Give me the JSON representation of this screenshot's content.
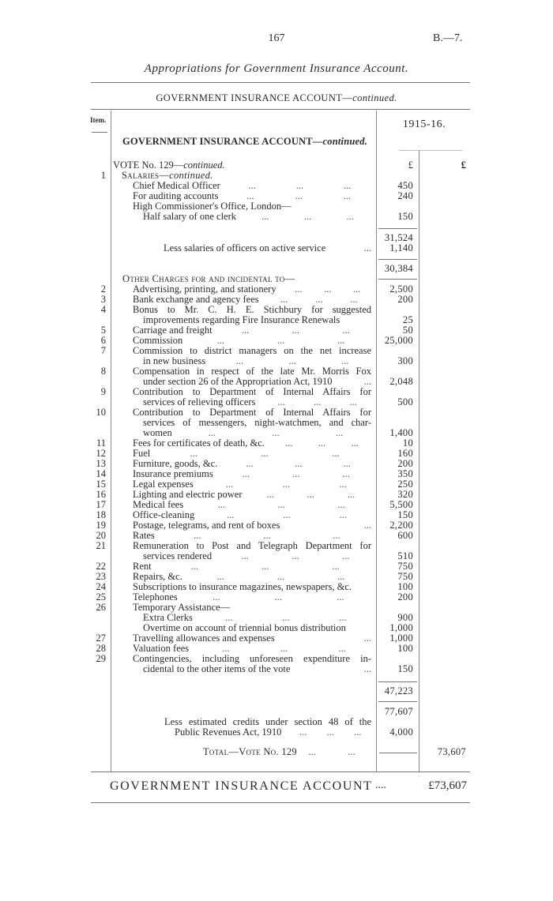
{
  "header": {
    "page_number": "167",
    "reference": "B.—7.",
    "title": "Appropriations for Government Insurance Account."
  },
  "subtitle": {
    "main": "GOVERNMENT INSURANCE ACCOUNT—",
    "italic": "continued."
  },
  "table": {
    "item_header": "Item.",
    "year_header": "1915-16.",
    "section_heading": "GOVERNMENT INSURANCE ACCOUNT—",
    "section_heading_italic": "continued.",
    "vote_label": "VOTE No. 129—",
    "vote_italic": "continued.",
    "currency_col1": "£",
    "currency_col2": "£",
    "salaries_item": "1",
    "salaries_label": "Salaries—",
    "salaries_italic": "continued.",
    "salary_rows": [
      {
        "item": "",
        "text": "Chief Medical Officer",
        "amount": "450"
      },
      {
        "item": "",
        "text": "For auditing accounts",
        "amount": "240"
      },
      {
        "item": "",
        "text": "High Commissioner's Office, London—",
        "amount": ""
      },
      {
        "item": "",
        "text": "Half salary of one clerk",
        "amount": "150"
      },
      {
        "item": "",
        "text": "",
        "amount": "31,524"
      },
      {
        "item": "",
        "text": "Less salaries of officers on active service",
        "amount": "1,140"
      },
      {
        "item": "",
        "text": "",
        "amount": "30,384"
      }
    ],
    "other_charges_label": "Other Charges for and incidental to—",
    "other_rows": [
      {
        "item": "2",
        "text": "Advertising, printing, and stationery",
        "amount": "2,500"
      },
      {
        "item": "3",
        "text": "Bank exchange and agency fees",
        "amount": "200"
      },
      {
        "item": "4",
        "text": "Bonus to Mr. C. H. E. Stichbury for suggested",
        "amount": ""
      },
      {
        "item": "",
        "text": "improvements regarding Fire Insurance Renewals",
        "amount": "25"
      },
      {
        "item": "5",
        "text": "Carriage and freight",
        "amount": "50"
      },
      {
        "item": "6",
        "text": "Commission",
        "amount": "25,000"
      },
      {
        "item": "7",
        "text": "Commission to district managers on the net increase",
        "amount": ""
      },
      {
        "item": "",
        "text": "in new business",
        "amount": "300"
      },
      {
        "item": "8",
        "text": "Compensation in respect of the late Mr. Morris Fox",
        "amount": ""
      },
      {
        "item": "",
        "text": "under section 26 of the Appropriation Act, 1910",
        "amount": "2,048"
      },
      {
        "item": "9",
        "text": "Contribution to Department of Internal Affairs for",
        "amount": ""
      },
      {
        "item": "",
        "text": "services of relieving officers",
        "amount": "500"
      },
      {
        "item": "10",
        "text": "Contribution to Department of Internal Affairs for",
        "amount": ""
      },
      {
        "item": "",
        "text": "services of messengers, night-watchmen, and char-",
        "amount": ""
      },
      {
        "item": "",
        "text": "women",
        "amount": "1,400"
      },
      {
        "item": "11",
        "text": "Fees for certificates of death, &c.",
        "amount": "10"
      },
      {
        "item": "12",
        "text": "Fuel",
        "amount": "160"
      },
      {
        "item": "13",
        "text": "Furniture, goods, &c.",
        "amount": "200"
      },
      {
        "item": "14",
        "text": "Insurance premiums",
        "amount": "350"
      },
      {
        "item": "15",
        "text": "Legal expenses",
        "amount": "250"
      },
      {
        "item": "16",
        "text": "Lighting and electric power",
        "amount": "320"
      },
      {
        "item": "17",
        "text": "Medical fees",
        "amount": "5,500"
      },
      {
        "item": "18",
        "text": "Office-cleaning",
        "amount": "150"
      },
      {
        "item": "19",
        "text": "Postage, telegrams, and rent of boxes",
        "amount": "2,200"
      },
      {
        "item": "20",
        "text": "Rates",
        "amount": "600"
      },
      {
        "item": "21",
        "text": "Remuneration to Post and Telegraph Department for",
        "amount": ""
      },
      {
        "item": "",
        "text": "services rendered",
        "amount": "510"
      },
      {
        "item": "22",
        "text": "Rent",
        "amount": "750"
      },
      {
        "item": "23",
        "text": "Repairs, &c.",
        "amount": "750"
      },
      {
        "item": "24",
        "text": "Subscriptions to insurance magazines, newspapers, &c.",
        "amount": "100"
      },
      {
        "item": "25",
        "text": "Telephones",
        "amount": "200"
      },
      {
        "item": "26",
        "text": "Temporary Assistance—",
        "amount": ""
      },
      {
        "item": "",
        "text": "Extra Clerks",
        "amount": "900"
      },
      {
        "item": "",
        "text": "Overtime on account of triennial bonus distribution",
        "amount": "1,000"
      },
      {
        "item": "27",
        "text": "Travelling allowances and expenses",
        "amount": "1,000"
      },
      {
        "item": "28",
        "text": "Valuation fees",
        "amount": "100"
      },
      {
        "item": "29",
        "text": "Contingencies, including unforeseen expenditure in-",
        "amount": ""
      },
      {
        "item": "",
        "text": "cidental to the other items of the vote",
        "amount": "150"
      },
      {
        "item": "",
        "text": "",
        "amount": "47,223"
      },
      {
        "item": "",
        "text": "",
        "amount": "77,607"
      },
      {
        "item": "",
        "text": "Less estimated credits under section 48 of the",
        "amount": ""
      },
      {
        "item": "",
        "text": "Public Revenues Act, 1910",
        "amount": "4,000"
      }
    ],
    "total_label": "Total—Vote No. 129",
    "total_amount": "73,607"
  },
  "footer": {
    "label": "GOVERNMENT INSURANCE ACCOUNT",
    "leader": "....",
    "amount": "£73,607"
  }
}
